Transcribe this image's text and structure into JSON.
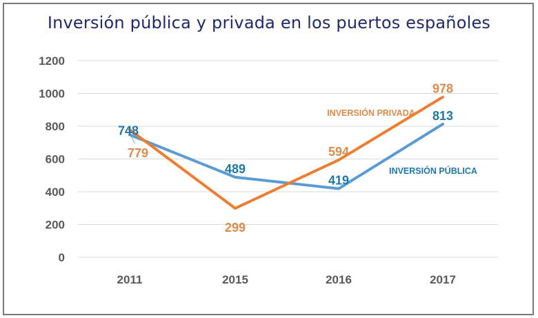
{
  "chart_data": {
    "type": "line",
    "title": "Inversión pública y privada en los puertos españoles",
    "xlabel": "",
    "ylabel": "",
    "categories": [
      "2011",
      "2015",
      "2016",
      "2017"
    ],
    "ylim": [
      0,
      1200
    ],
    "yticks": [
      "0",
      "200",
      "400",
      "600",
      "800",
      "1000",
      "1200"
    ],
    "grid": true,
    "series": [
      {
        "name": "INVERSIÓN PÚBLICA",
        "color": "#5b9bd5",
        "label_color": "#1f77a8",
        "values": [
          748,
          489,
          419,
          813
        ],
        "labels": [
          "748",
          "489",
          "419",
          "813"
        ]
      },
      {
        "name": "INVERSIÓN PRIVADA",
        "color": "#ed7d31",
        "label_color": "#e08a4a",
        "values": [
          779,
          299,
          594,
          978
        ],
        "labels": [
          "779",
          "299",
          "594",
          "978"
        ]
      }
    ]
  }
}
